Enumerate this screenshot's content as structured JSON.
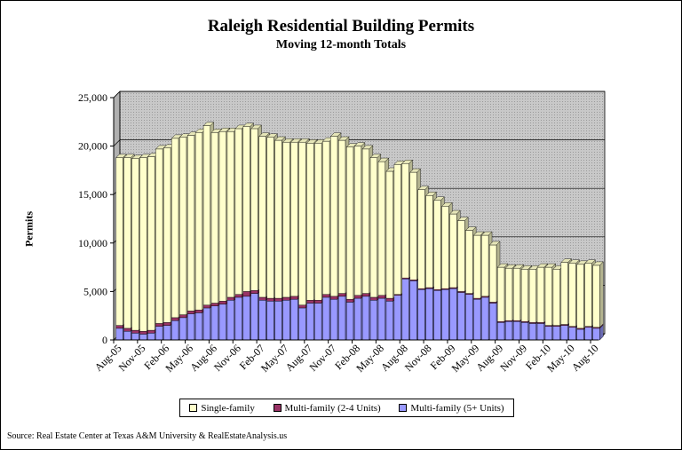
{
  "chart_data": {
    "type": "bar",
    "stacked": true,
    "title": "Raleigh Residential Building Permits",
    "subtitle": "Moving 12-month Totals",
    "ylabel": "Permits",
    "xlabel": "",
    "ylim": [
      0,
      25000
    ],
    "yticks": [
      "0",
      "5,000",
      "10,000",
      "15,000",
      "20,000",
      "25,000"
    ],
    "ytick_values": [
      0,
      5000,
      10000,
      15000,
      20000,
      25000
    ],
    "xtick_labels": [
      "Aug-05",
      "Nov-05",
      "Feb-06",
      "May-06",
      "Aug-06",
      "Nov-06",
      "Feb-07",
      "May-07",
      "Aug-07",
      "Nov-07",
      "Feb-08",
      "May-08",
      "Aug-08",
      "Nov-08",
      "Feb-09",
      "May-09",
      "Aug-09",
      "Nov-09",
      "Feb-10",
      "May-10",
      "Aug-10"
    ],
    "categories": [
      "Aug-05",
      "Sep-05",
      "Oct-05",
      "Nov-05",
      "Dec-05",
      "Jan-06",
      "Feb-06",
      "Mar-06",
      "Apr-06",
      "May-06",
      "Jun-06",
      "Jul-06",
      "Aug-06",
      "Sep-06",
      "Oct-06",
      "Nov-06",
      "Dec-06",
      "Jan-07",
      "Feb-07",
      "Mar-07",
      "Apr-07",
      "May-07",
      "Jun-07",
      "Jul-07",
      "Aug-07",
      "Sep-07",
      "Oct-07",
      "Nov-07",
      "Dec-07",
      "Jan-08",
      "Feb-08",
      "Mar-08",
      "Apr-08",
      "May-08",
      "Jun-08",
      "Jul-08",
      "Aug-08",
      "Sep-08",
      "Oct-08",
      "Nov-08",
      "Dec-08",
      "Jan-09",
      "Feb-09",
      "Mar-09",
      "Apr-09",
      "May-09",
      "Jun-09",
      "Jul-09",
      "Aug-09",
      "Sep-09",
      "Oct-09",
      "Nov-09",
      "Dec-09",
      "Jan-10",
      "Feb-10",
      "Mar-10",
      "Apr-10",
      "May-10",
      "Jun-10",
      "Jul-10",
      "Aug-10"
    ],
    "series": [
      {
        "name": "Multi-family (5+ Units)",
        "color": "#9999ff",
        "values": [
          1200,
          900,
          700,
          600,
          700,
          1400,
          1500,
          2000,
          2300,
          2700,
          2800,
          3300,
          3500,
          3700,
          4100,
          4400,
          4500,
          4800,
          4100,
          4000,
          4000,
          4100,
          4200,
          3300,
          3800,
          3800,
          4400,
          4200,
          4500,
          3900,
          4300,
          4500,
          4100,
          4300,
          4000,
          4600,
          6300,
          6100,
          5200,
          5300,
          5100,
          5200,
          5300,
          4900,
          4700,
          4200,
          4400,
          3800,
          1800,
          1900,
          1900,
          1800,
          1700,
          1700,
          1400,
          1400,
          1500,
          1300,
          1100,
          1300,
          1200
        ]
      },
      {
        "name": "Multi-family (2-4 Units)",
        "color": "#993366",
        "values": [
          300,
          300,
          300,
          300,
          300,
          300,
          300,
          300,
          300,
          300,
          300,
          300,
          300,
          300,
          300,
          300,
          500,
          300,
          300,
          300,
          300,
          300,
          300,
          300,
          300,
          300,
          300,
          300,
          300,
          300,
          300,
          300,
          300,
          300,
          300,
          100,
          100,
          100,
          100,
          100,
          100,
          100,
          100,
          100,
          100,
          100,
          100,
          100,
          100,
          100,
          100,
          100,
          100,
          100,
          100,
          100,
          100,
          100,
          100,
          100,
          100
        ]
      },
      {
        "name": "Single-family",
        "color": "#ffffcc",
        "values": [
          17300,
          17600,
          17700,
          17900,
          17900,
          18000,
          18000,
          18500,
          18300,
          18100,
          18300,
          18500,
          17600,
          17500,
          17100,
          17100,
          17000,
          16700,
          16600,
          16600,
          16300,
          16000,
          15900,
          16800,
          16200,
          16200,
          15800,
          16500,
          15800,
          15700,
          15400,
          14900,
          14400,
          13800,
          13100,
          13400,
          11800,
          11100,
          10200,
          9500,
          9200,
          8500,
          7600,
          7300,
          6500,
          6500,
          6300,
          5900,
          5600,
          5400,
          5400,
          5400,
          5500,
          5700,
          6000,
          5800,
          6400,
          6500,
          6600,
          6500,
          6400
        ]
      }
    ],
    "legend": [
      "Single-family",
      "Multi-family (2-4 Units)",
      "Multi-family (5+ Units)"
    ],
    "legend_position": "bottom",
    "grid": true,
    "source": "Source: Real Estate Center at Texas A&M University & RealEstateAnalysis.us"
  }
}
